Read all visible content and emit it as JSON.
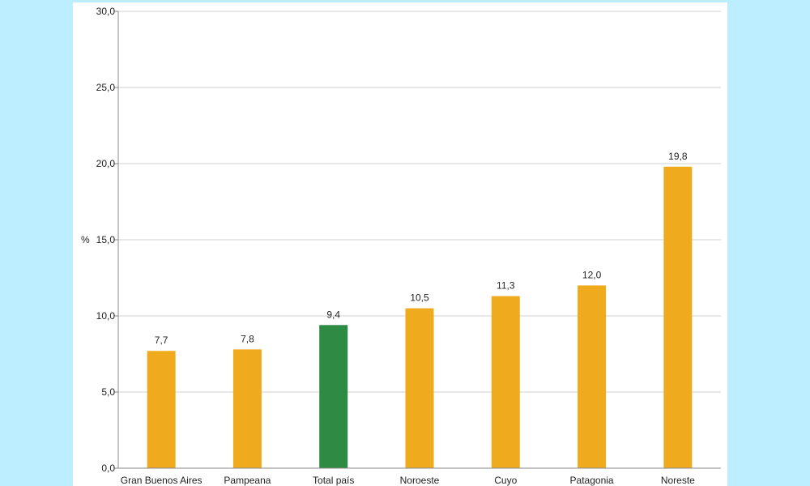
{
  "chart_data": {
    "type": "bar",
    "ylabel": "%",
    "ylim": [
      0,
      30
    ],
    "yticks": [
      "0,0",
      "5,0",
      "10,0",
      "15,0",
      "20,0",
      "25,0",
      "30,0"
    ],
    "ytick_values": [
      0,
      5,
      10,
      15,
      20,
      25,
      30
    ],
    "grid": true,
    "categories": [
      "Gran Buenos Aires",
      "Pampeana",
      "Total país",
      "Noroeste",
      "Cuyo",
      "Patagonia",
      "Noreste"
    ],
    "values": [
      7.7,
      7.8,
      9.4,
      10.5,
      11.3,
      12.0,
      19.8
    ],
    "value_labels": [
      "7,7",
      "7,8",
      "9,4",
      "10,5",
      "11,3",
      "12,0",
      "19,8"
    ],
    "colors": [
      "#f0aa1e",
      "#f0aa1e",
      "#2e8b43",
      "#f0aa1e",
      "#f0aa1e",
      "#f0aa1e",
      "#f0aa1e"
    ],
    "background_color": "#bdeeff"
  }
}
